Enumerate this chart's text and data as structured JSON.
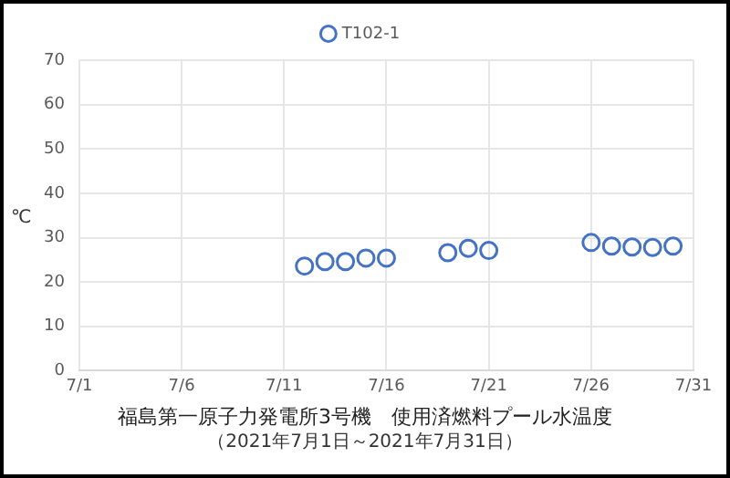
{
  "chart_data": {
    "type": "scatter",
    "title": "福島第一原子力発電所3号機　使用済燃料プール水温度",
    "subtitle": "（2021年7月1日～2021年7月31日）",
    "ylabel": "℃",
    "x": [
      "2021-07-12",
      "2021-07-13",
      "2021-07-14",
      "2021-07-15",
      "2021-07-16",
      "2021-07-19",
      "2021-07-20",
      "2021-07-21",
      "2021-07-26",
      "2021-07-27",
      "2021-07-28",
      "2021-07-29",
      "2021-07-30"
    ],
    "series": [
      {
        "name": "T102-1",
        "color": "#4472c4",
        "values": [
          23.6,
          24.6,
          24.6,
          25.4,
          25.4,
          26.6,
          27.6,
          27.1,
          28.9,
          28.1,
          27.9,
          27.8,
          28.1
        ]
      }
    ],
    "xlim": [
      "2021-07-01",
      "2021-07-31"
    ],
    "xticks": [
      {
        "value": "2021-07-01",
        "label": "7/1"
      },
      {
        "value": "2021-07-06",
        "label": "7/6"
      },
      {
        "value": "2021-07-11",
        "label": "7/11"
      },
      {
        "value": "2021-07-16",
        "label": "7/16"
      },
      {
        "value": "2021-07-21",
        "label": "7/21"
      },
      {
        "value": "2021-07-26",
        "label": "7/26"
      },
      {
        "value": "2021-07-31",
        "label": "7/31"
      }
    ],
    "ylim": [
      0,
      70
    ],
    "yticks": [
      0,
      10,
      20,
      30,
      40,
      50,
      60,
      70
    ],
    "grid": true,
    "legend": "top",
    "marker": "circle"
  }
}
